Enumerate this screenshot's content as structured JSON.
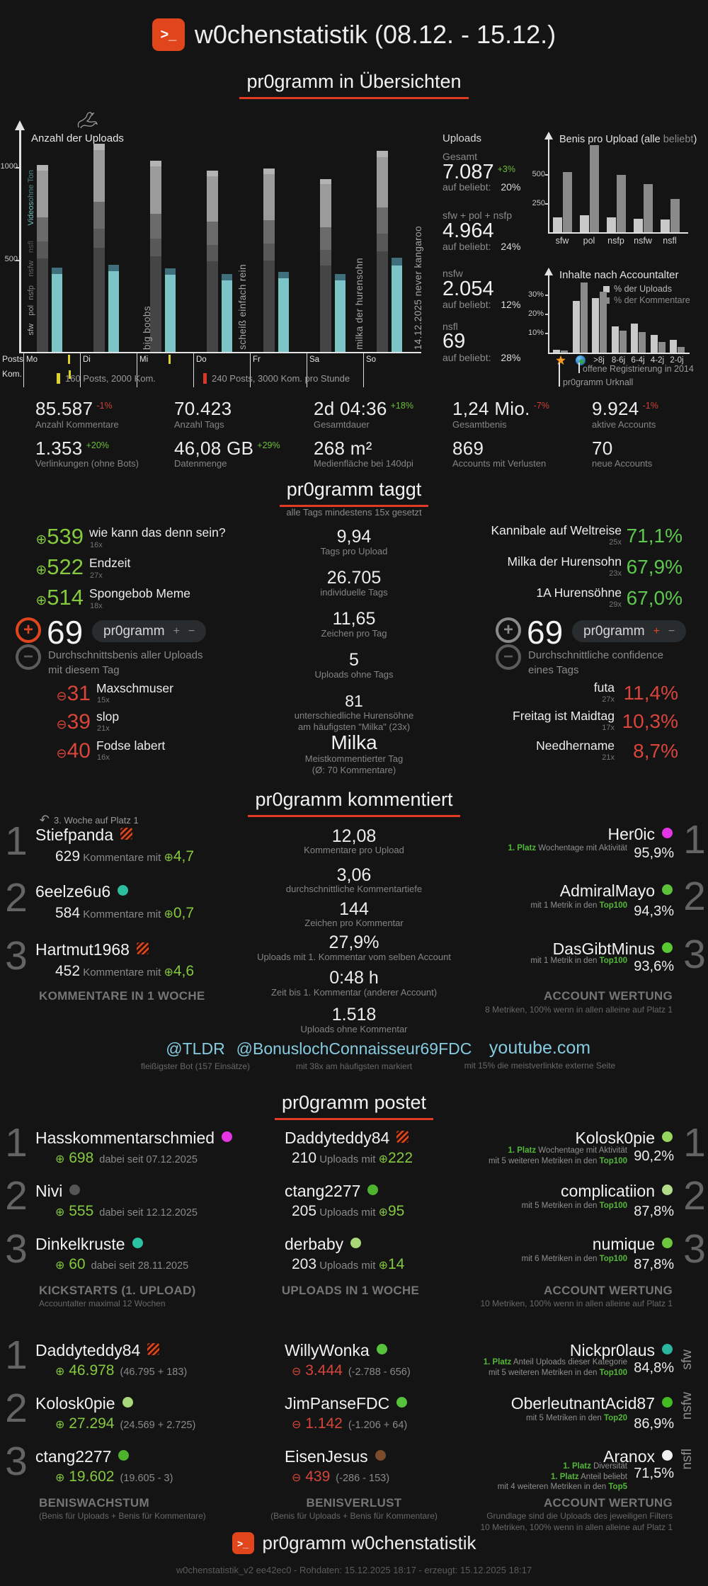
{
  "header": {
    "logo_glyph": ">_",
    "title": "w0chenstatistik (08.12. - 15.12.)"
  },
  "section_titles": {
    "overview": "pr0gramm in Übersichten",
    "taggt": "pr0gramm taggt",
    "taggt_subtitle": "alle Tags mindestens 15x gesetzt",
    "kommentiert": "pr0gramm kommentiert",
    "postet": "pr0gramm postet"
  },
  "glyphs": {
    "plus_circled": "⊕",
    "minus_circled": "⊖",
    "plus": "+",
    "minus": "−",
    "history_arrow": "↶"
  },
  "uploads_panel": {
    "title": "Uploads",
    "items": [
      {
        "label": "Gesamt",
        "value": "7.087",
        "delta": "+3%",
        "sub_label": "auf beliebt:",
        "sub_value": "20%"
      },
      {
        "label": "sfw + pol + nsfp",
        "value": "4.964",
        "sub_label": "auf beliebt:",
        "sub_value": "24%"
      },
      {
        "label": "nsfw",
        "value": "2.054",
        "sub_label": "auf beliebt:",
        "sub_value": "12%"
      },
      {
        "label": "nsfl",
        "value": "69",
        "sub_label": "auf beliebt:",
        "sub_value": "28%"
      }
    ]
  },
  "stats": [
    {
      "value": "85.587",
      "delta": "-1%",
      "caption": "Anzahl Kommentare"
    },
    {
      "value": "70.423",
      "caption": "Anzahl Tags"
    },
    {
      "value": "2d 04:36",
      "delta": "+18%",
      "caption": "Gesamtdauer"
    },
    {
      "value": "1,24 Mio.",
      "delta": "-7%",
      "caption": "Gesamtbenis"
    },
    {
      "value": "9.924",
      "delta": "-1%",
      "caption": "aktive Accounts"
    },
    {
      "value": "1.353",
      "delta": "+20%",
      "caption": "Verlinkungen (ohne Bots)"
    },
    {
      "value": "46,08 GB",
      "delta": "+29%",
      "caption": "Datenmenge"
    },
    {
      "value": "268 m²",
      "caption": "Medienfläche bei 140dpi"
    },
    {
      "value": "869",
      "caption": "Accounts mit Verlusten"
    },
    {
      "value": "70",
      "caption": "neue Accounts"
    }
  ],
  "taggt": {
    "top_tags": [
      {
        "score": "539",
        "label": "wie kann das denn sein?",
        "count": "16x"
      },
      {
        "score": "522",
        "label": "Endzeit",
        "count": "27x"
      },
      {
        "score": "514",
        "label": "Spongebob Meme",
        "count": "18x"
      }
    ],
    "benis_block": {
      "value": "69",
      "tag": "pr0gramm",
      "caption1": "Durchschnittsbenis aller Uploads",
      "caption2": "mit diesem Tag"
    },
    "flop_tags": [
      {
        "score": "31",
        "label": "Maxschmuser",
        "count": "15x"
      },
      {
        "score": "39",
        "label": "slop",
        "count": "21x"
      },
      {
        "score": "40",
        "label": "Fodse labert",
        "count": "16x"
      }
    ],
    "center": [
      {
        "value": "9,94",
        "caption": "Tags pro Upload"
      },
      {
        "value": "26.705",
        "caption": "individuelle Tags"
      },
      {
        "value": "11,65",
        "caption": "Zeichen pro Tag"
      },
      {
        "value": "5",
        "caption": "Uploads ohne Tags"
      },
      {
        "value": "81",
        "caption1": "unterschiedliche Hurensöhne",
        "caption2": "am häufigsten \"Milka\" (23x)"
      },
      {
        "value": "Milka",
        "caption1": "Meistkommentierter Tag",
        "caption2": "(Ø: 70 Kommentare)"
      }
    ],
    "confidence_top": [
      {
        "label": "Kannibale auf Weltreise",
        "count": "25x",
        "value": "71,1%"
      },
      {
        "label": "Milka der Hurensohn",
        "count": "23x",
        "value": "67,9%"
      },
      {
        "label": "1A Hurensöhne",
        "count": "29x",
        "value": "67,0%"
      }
    ],
    "confidence_block": {
      "value": "69",
      "tag": "pr0gramm",
      "caption1": "Durchschnittliche confidence",
      "caption2": "eines Tags"
    },
    "confidence_flop": [
      {
        "label": "futa",
        "count": "27x",
        "value": "11,4%"
      },
      {
        "label": "Freitag ist Maidtag",
        "count": "17x",
        "value": "10,3%"
      },
      {
        "label": "Needhername",
        "count": "21x",
        "value": "8,7%"
      }
    ]
  },
  "kommentiert": {
    "left": {
      "annotation": "3. Woche auf Platz 1",
      "rows": [
        {
          "rank": "1",
          "name": "Stiefpanda",
          "marker": "hatch",
          "count": "629",
          "mid_text": "Kommentare mit",
          "score": "4,7"
        },
        {
          "rank": "2",
          "name": "6eelze6u6",
          "marker": "dot",
          "dot_color": "#2bbd9e",
          "count": "584",
          "mid_text": "Kommentare mit",
          "score": "0,7"
        },
        {
          "rank": "3",
          "name": "Hartmut1968",
          "marker": "hatch",
          "count": "452",
          "mid_text": "Kommentare mit",
          "score": "4,6"
        }
      ],
      "footer": "KOMMENTARE IN 1 WOCHE"
    },
    "center": [
      {
        "value": "12,08",
        "caption": "Kommentare pro Upload"
      },
      {
        "value": "3,06",
        "caption": "durchschnittliche Kommentartiefe"
      },
      {
        "value": "144",
        "caption": "Zeichen pro Kommentar"
      },
      {
        "value": "27,9%",
        "caption": "Uploads mit 1. Kommentar vom selben Account"
      },
      {
        "value": "0:48 h",
        "caption": "Zeit bis 1. Kommentar (anderer Account)"
      },
      {
        "value": "1.518",
        "caption": "Uploads ohne Kommentar"
      }
    ],
    "right": {
      "rows": [
        {
          "rank": "1",
          "name": "Her0ic",
          "dot_color": "#e335e3",
          "line1_green": "1. Platz",
          "line1_gray": "Wochentage mit Aktivität",
          "value": "95,9%"
        },
        {
          "rank": "2",
          "name": "AdmiralMayo",
          "dot_color": "#5ec13a",
          "line1_gray": "mit 1 Metrik in den",
          "line1_top": "Top100",
          "value": "94,3%"
        },
        {
          "rank": "3",
          "name": "DasGibtMinus",
          "dot_color": "#59c832",
          "line1_gray": "mit 1 Metrik in den",
          "line1_top": "Top100",
          "value": "93,6%"
        }
      ],
      "footer": "ACCOUNT WERTUNG",
      "footer_sub": "8 Metriken, 100% wenn in allen alleine auf Platz 1"
    }
  },
  "links": [
    {
      "name": "@TLDR",
      "caption": "fleißigster Bot (157 Einsätze)"
    },
    {
      "name": "@BonuslochConnaisseur69FDC",
      "caption": "mit 38x am häufigsten markiert"
    },
    {
      "name": "youtube.com",
      "caption": "mit 15% die meistverlinkte externe Seite"
    }
  ],
  "postet": {
    "block1": {
      "left": {
        "rows": [
          {
            "rank": "1",
            "name": "Hasskommentarschmied",
            "dot_color": "#e335e3",
            "score": "698",
            "note": "dabei seit 07.12.2025"
          },
          {
            "rank": "2",
            "name": "Nivi",
            "dot_color": "#555555",
            "score": "555",
            "note": "dabei seit 12.12.2025"
          },
          {
            "rank": "3",
            "name": "Dinkelkruste",
            "dot_color": "#2cc1a2",
            "score": "60",
            "note": "dabei seit 28.11.2025"
          }
        ],
        "footer": "KICKSTARTS (1. UPLOAD)",
        "footer_sub": "Accountalter maximal 12 Wochen"
      },
      "mid": {
        "rows": [
          {
            "name": "Daddyteddy84",
            "marker": "hatch",
            "count": "210",
            "mid_text": "Uploads mit",
            "score": "222"
          },
          {
            "name": "ctang2277",
            "marker": "dot",
            "dot_color": "#4db32e",
            "count": "205",
            "mid_text": "Uploads mit",
            "score": "95"
          },
          {
            "name": "derbaby",
            "marker": "dot",
            "dot_color": "#a8d878",
            "count": "203",
            "mid_text": "Uploads mit",
            "score": "14"
          }
        ],
        "footer": "UPLOADS IN 1 WOCHE"
      },
      "right": {
        "rows": [
          {
            "rank": "1",
            "name": "Kolosk0pie",
            "dot_color": "#97d65e",
            "l1_green": "1. Platz",
            "l1_gray": "Wochentage mit Aktivität",
            "l2_gray": "mit 5 weiteren Metriken in den",
            "l2_top": "Top100",
            "value": "90,2%"
          },
          {
            "rank": "2",
            "name": "complicatiion",
            "dot_color": "#b2dc8a",
            "l1_gray": "mit 5 Metriken in den",
            "l1_top": "Top100",
            "value": "87,8%"
          },
          {
            "rank": "3",
            "name": "numique",
            "dot_color": "#6cc73e",
            "l1_gray": "mit 6 Metriken in den",
            "l1_top": "Top100",
            "value": "87,8%"
          }
        ],
        "footer": "ACCOUNT WERTUNG",
        "footer_sub": "10 Metriken, 100% wenn in allen alleine auf Platz 1"
      }
    },
    "block2": {
      "left": {
        "rows": [
          {
            "rank": "1",
            "name": "Daddyteddy84",
            "marker": "hatch",
            "score": "46.978",
            "note": "(46.795 + 183)"
          },
          {
            "rank": "2",
            "name": "Kolosk0pie",
            "marker": "dot",
            "dot_color": "#a8d878",
            "score": "27.294",
            "note": "(24.569 + 2.725)"
          },
          {
            "rank": "3",
            "name": "ctang2277",
            "marker": "dot",
            "dot_color": "#4db32e",
            "score": "19.602",
            "note": "(19.605 - 3)"
          }
        ],
        "footer": "BENISWACHSTUM",
        "footer_sub": "(Benis für Uploads + Benis für Kommentare)"
      },
      "mid": {
        "rows": [
          {
            "name": "WillyWonka",
            "dot_color": "#57c23c",
            "score": "3.444",
            "note": "(-2.788 - 656)"
          },
          {
            "name": "JimPanseFDC",
            "dot_color": "#57c23c",
            "score": "1.142",
            "note": "(-1.206 + 64)"
          },
          {
            "name": "EisenJesus",
            "dot_color": "#7a4c2c",
            "score": "439",
            "note": "(-286 - 153)"
          }
        ],
        "footer": "BENISVERLUST",
        "footer_sub": "(Benis für Uploads + Benis für Kommentare)"
      },
      "right": {
        "rows": [
          {
            "cat": "sfw",
            "name": "Nickpr0laus",
            "dot_color": "#2ab5a0",
            "l1_green": "1. Platz",
            "l1_gray": "Anteil Uploads dieser Kategorie",
            "l2_gray": "mit 5 weiteren Metriken in den",
            "l2_top": "Top100",
            "value": "84,8%"
          },
          {
            "cat": "nsfw",
            "name": "OberleutnantAcid87",
            "dot_color": "#44bb22",
            "l1_gray": "mit 5 Metriken in den",
            "l1_top": "Top20",
            "value": "86,9%"
          },
          {
            "cat": "nsfl",
            "name": "Aranox",
            "dot_color": "#f2f2f2",
            "l1_green": "1. Platz",
            "l1_gray": "Diversität",
            "l2_green": "1. Platz",
            "l2_gray": "Anteil beliebt",
            "l3_gray": "mit 4 weiteren Metriken in den",
            "l3_top": "Top5",
            "value": "71,5%"
          }
        ],
        "footer": "ACCOUNT WERTUNG",
        "footer_sub1": "Grundlage sind die Uploads des jeweiligen Filters",
        "footer_sub2": "10 Metriken, 100% wenn in allen alleine auf Platz 1"
      }
    }
  },
  "footer": {
    "logo_glyph": ">_",
    "title": "pr0gramm w0chenstatistik",
    "meta": "w0chenstatistik_v2 ee42ec0 - Rohdaten: 15.12.2025 18:17 - erzeugt: 15.12.2025 18:17"
  },
  "chart_data": [
    {
      "type": "bar",
      "title": "Anzahl der Uploads",
      "days": [
        "Mo",
        "Di",
        "Mi",
        "Do",
        "Fr",
        "Sa",
        "So"
      ],
      "stack_totals": [
        1005,
        1120,
        1030,
        975,
        985,
        930,
        1080
      ],
      "stack_segment_fractions": [
        0.5,
        0.09,
        0.13,
        0.25,
        0.03
      ],
      "stack_segment_colors": [
        "#454545",
        "#585858",
        "#6b6b6b",
        "#9b9b9b",
        "#b3b3b3"
      ],
      "stack_categories": [
        "sfw",
        "pol",
        "nsfp",
        "nsfw",
        "nsfl"
      ],
      "video_counts": [
        455,
        470,
        450,
        420,
        430,
        420,
        505
      ],
      "video_cap_fraction": 0.08,
      "video_color": "#7cc5c6",
      "video_cap_color": "#3f6f7a",
      "ylim_max": 1150,
      "yticks": [
        "500",
        "1000"
      ],
      "left_axis_labels": [
        {
          "text": "sfw",
          "color": "#b5b5b5"
        },
        {
          "text": "pol",
          "color": "#9a9a9a"
        },
        {
          "text": "nsfp",
          "color": "#7f7f7f"
        },
        {
          "text": "nsfw",
          "color": "#686868"
        },
        {
          "text": "nsfl",
          "color": "#525252"
        },
        {
          "text": "Videos",
          "color": "#6fc0c0"
        },
        {
          "text": "ohne Ton",
          "color": "#4d8585"
        }
      ],
      "annotations": [
        {
          "x": 171,
          "text": "big boobs"
        },
        {
          "x": 306,
          "text": "scheiß einfach rein"
        },
        {
          "x": 471,
          "text": "milka der hurensohn"
        },
        {
          "x": 554,
          "text": "14.12.2025 never kangaroo"
        }
      ],
      "axis_rows": [
        "Posts",
        "Kom."
      ],
      "legend": [
        {
          "color": "#ded32b",
          "label": "160 Posts, 2000 Kom."
        },
        {
          "color": "#d8372a",
          "label": "240 Posts, 3000 Kom. pro Stunde"
        }
      ]
    },
    {
      "type": "bar",
      "title_pre": "Benis pro Upload (",
      "title_alle": "alle",
      "title_beliebt": "beliebt",
      "title_post": ")",
      "categories": [
        "sfw",
        "pol",
        "nsfp",
        "nsfw",
        "nsfl"
      ],
      "series": [
        {
          "name": "alle",
          "color": "#c9c9c9",
          "values": [
            130,
            145,
            130,
            115,
            110
          ]
        },
        {
          "name": "beliebt",
          "color": "#8a8a8a",
          "values": [
            525,
            755,
            500,
            420,
            290
          ]
        }
      ],
      "yticks": [
        "250",
        "500"
      ],
      "ylim_max": 770
    },
    {
      "type": "bar",
      "title": "Inhalte nach Accountalter",
      "categories": [
        {
          "icon": "explosion-icon"
        },
        {
          "icon": "earth-icon"
        },
        ">8j",
        "8-6j",
        "6-4j",
        "4-2j",
        "2-0j"
      ],
      "series": [
        {
          "name": "% der Uploads",
          "color": "#c9c9c9",
          "values": [
            1.5,
            26.5,
            28,
            13.5,
            15,
            9,
            6.5
          ]
        },
        {
          "name": "% der Kommentare",
          "color": "#8a8a8a",
          "values": [
            1.2,
            36,
            31.5,
            11.5,
            10.5,
            5.5,
            3
          ]
        }
      ],
      "yticks": [
        "10%",
        "20%",
        "30%"
      ],
      "ylim_max": 38,
      "annotations": [
        "pr0gramm Urknall",
        "offene Registrierung in 2014"
      ]
    }
  ]
}
